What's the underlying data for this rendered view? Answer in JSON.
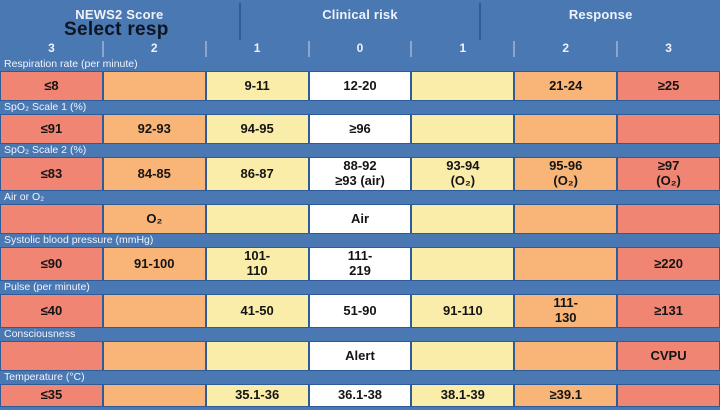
{
  "header": {
    "tabs": [
      {
        "id": "news2-score",
        "label": "NEWS2 Score"
      },
      {
        "id": "clinical-risk",
        "label": "Clinical risk"
      },
      {
        "id": "response",
        "label": "Response"
      }
    ],
    "dropdown_text": "Select resp"
  },
  "score_row": [
    "3",
    "2",
    "1",
    "0",
    "1",
    "2",
    "3"
  ],
  "colors": {
    "background_blue": "#4a78b2",
    "cell_border_blue": "#2e5c99",
    "red": "#f08573",
    "orange": "#f8b577",
    "yellow": "#faedaa",
    "white": "#ffffff"
  },
  "table": {
    "rows": [
      {
        "name": "respiration-rate",
        "label": "Respiration rate (per minute)",
        "cells": [
          {
            "text": "≤8",
            "color": "red"
          },
          {
            "text": "",
            "color": "orange"
          },
          {
            "text": "9-11",
            "color": "yellow"
          },
          {
            "text": "12-20",
            "color": "white"
          },
          {
            "text": "",
            "color": "yellow"
          },
          {
            "text": "21-24",
            "color": "orange"
          },
          {
            "text": "≥25",
            "color": "red"
          }
        ]
      },
      {
        "name": "spo2-scale-1",
        "label": "SpO₂ Scale 1 (%)",
        "cells": [
          {
            "text": "≤91",
            "color": "red"
          },
          {
            "text": "92-93",
            "color": "orange"
          },
          {
            "text": "94-95",
            "color": "yellow"
          },
          {
            "text": "≥96",
            "color": "white"
          },
          {
            "text": "",
            "color": "yellow"
          },
          {
            "text": "",
            "color": "orange"
          },
          {
            "text": "",
            "color": "red"
          }
        ]
      },
      {
        "name": "spo2-scale-2",
        "label": "SpO₂ Scale 2 (%)",
        "cells": [
          {
            "text": "≤83",
            "color": "red"
          },
          {
            "text": "84-85",
            "color": "orange"
          },
          {
            "text": "86-87",
            "color": "yellow"
          },
          {
            "text": "88-92\n≥93 (air)",
            "color": "white"
          },
          {
            "text": "93-94\n(O₂)",
            "color": "yellow"
          },
          {
            "text": "95-96\n(O₂)",
            "color": "orange"
          },
          {
            "text": "≥97\n(O₂)",
            "color": "red"
          }
        ]
      },
      {
        "name": "air-or-o2",
        "label": "Air or O₂",
        "cells": [
          {
            "text": "",
            "color": "red"
          },
          {
            "text": "O₂",
            "color": "orange"
          },
          {
            "text": "",
            "color": "yellow"
          },
          {
            "text": "Air",
            "color": "white"
          },
          {
            "text": "",
            "color": "yellow"
          },
          {
            "text": "",
            "color": "orange"
          },
          {
            "text": "",
            "color": "red"
          }
        ]
      },
      {
        "name": "systolic-bp",
        "label": "Systolic blood pressure (mmHg)",
        "cells": [
          {
            "text": "≤90",
            "color": "red"
          },
          {
            "text": "91-100",
            "color": "orange"
          },
          {
            "text": "101-\n110",
            "color": "yellow"
          },
          {
            "text": "111-\n219",
            "color": "white"
          },
          {
            "text": "",
            "color": "yellow"
          },
          {
            "text": "",
            "color": "orange"
          },
          {
            "text": "≥220",
            "color": "red"
          }
        ]
      },
      {
        "name": "pulse",
        "label": "Pulse (per minute)",
        "cells": [
          {
            "text": "≤40",
            "color": "red"
          },
          {
            "text": "",
            "color": "orange"
          },
          {
            "text": "41-50",
            "color": "yellow"
          },
          {
            "text": "51-90",
            "color": "white"
          },
          {
            "text": "91-110",
            "color": "yellow"
          },
          {
            "text": "111-\n130",
            "color": "orange"
          },
          {
            "text": "≥131",
            "color": "red"
          }
        ]
      },
      {
        "name": "consciousness",
        "label": "Consciousness",
        "cells": [
          {
            "text": "",
            "color": "red"
          },
          {
            "text": "",
            "color": "orange"
          },
          {
            "text": "",
            "color": "yellow"
          },
          {
            "text": "Alert",
            "color": "white"
          },
          {
            "text": "",
            "color": "yellow"
          },
          {
            "text": "",
            "color": "orange"
          },
          {
            "text": "CVPU",
            "color": "red"
          }
        ]
      },
      {
        "name": "temperature",
        "label": "Temperature (°C)",
        "cells": [
          {
            "text": "≤35",
            "color": "red"
          },
          {
            "text": "",
            "color": "orange"
          },
          {
            "text": "35.1-36",
            "color": "yellow"
          },
          {
            "text": "36.1-38",
            "color": "white"
          },
          {
            "text": "38.1-39",
            "color": "yellow"
          },
          {
            "text": "≥39.1",
            "color": "orange"
          },
          {
            "text": "",
            "color": "red"
          }
        ]
      }
    ]
  }
}
